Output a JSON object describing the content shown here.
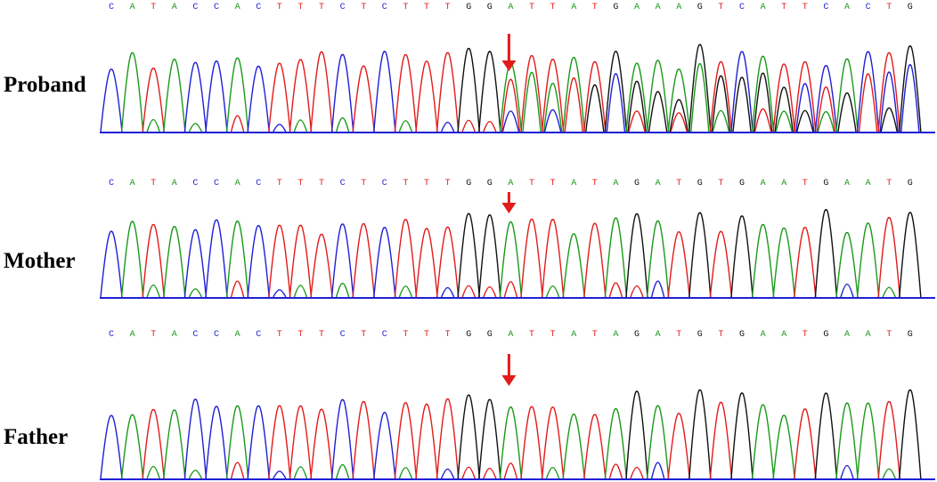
{
  "colors": {
    "A": "#1a9a1a",
    "C": "#1f1fd6",
    "G": "#111111",
    "T": "#e21b1b",
    "baseline": "#1f1fd6",
    "arrow": "#e21b1b"
  },
  "panels": [
    {
      "label": "Proband",
      "sequence": "CATACCACTTTCTCTTTGGATTATGAAAGTCATTCACTG",
      "arrow_index": 19,
      "heterozygous_after": 19
    },
    {
      "label": "Mother",
      "sequence": "CATACCACTTTCTCTTTGGATTATAGATGTGAATGAATG",
      "arrow_index": 19,
      "heterozygous_after": null
    },
    {
      "label": "Father",
      "sequence": "CATACCACTTTCTCTTTGGATTATAGATGTGAATGAATG",
      "arrow_index": 19,
      "heterozygous_after": null
    }
  ]
}
